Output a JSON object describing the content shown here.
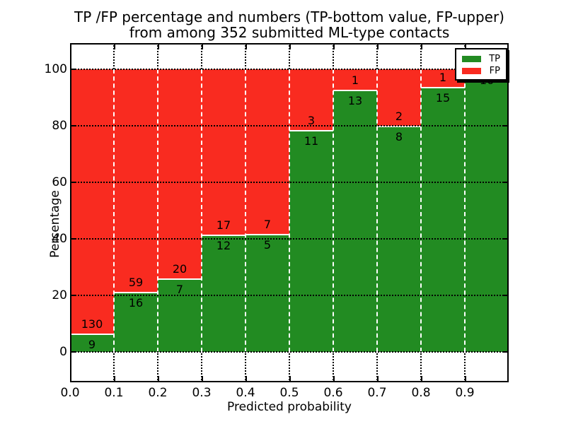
{
  "chart_data": {
    "type": "bar",
    "stacked": true,
    "title_line1": "TP /FP percentage and numbers (TP-bottom value, FP-upper)",
    "title_line2": "from among 352 submitted ML-type contacts",
    "xlabel": "Predicted probability",
    "ylabel": "Percentage",
    "total_submitted": 352,
    "bin_starts": [
      0.0,
      0.1,
      0.2,
      0.3,
      0.4,
      0.5,
      0.6,
      0.7,
      0.8,
      0.9
    ],
    "bin_width": 0.1,
    "categories": [
      "0.0-0.1",
      "0.1-0.2",
      "0.2-0.3",
      "0.3-0.4",
      "0.4-0.5",
      "0.5-0.6",
      "0.6-0.7",
      "0.7-0.8",
      "0.8-0.9",
      "0.9-1.0"
    ],
    "series": [
      {
        "name": "TP",
        "color": "#228b22",
        "values": [
          9,
          16,
          7,
          12,
          5,
          11,
          13,
          8,
          15,
          16
        ]
      },
      {
        "name": "FP",
        "color": "#f92b20",
        "values": [
          130,
          59,
          20,
          17,
          7,
          3,
          1,
          2,
          1,
          0
        ]
      }
    ],
    "bars_normalized_to_percent": true,
    "x_tick_labels": [
      "0.0",
      "0.1",
      "0.2",
      "0.3",
      "0.4",
      "0.5",
      "0.6",
      "0.7",
      "0.8",
      "0.9"
    ],
    "y_tick_values": [
      0,
      20,
      40,
      60,
      80,
      100
    ],
    "y_tick_labels": [
      "0",
      "20",
      "40",
      "60",
      "80",
      "100"
    ],
    "xlim": [
      0.0,
      1.0
    ],
    "ylim": [
      -10.5,
      109.5
    ],
    "grid": true,
    "grid_style": "black dotted; white dashed bin separators over bars",
    "legend": {
      "position": "upper right",
      "shadow": true,
      "entries": [
        {
          "label": "TP",
          "color": "#228b22"
        },
        {
          "label": "FP",
          "color": "#f92b20"
        }
      ]
    }
  }
}
